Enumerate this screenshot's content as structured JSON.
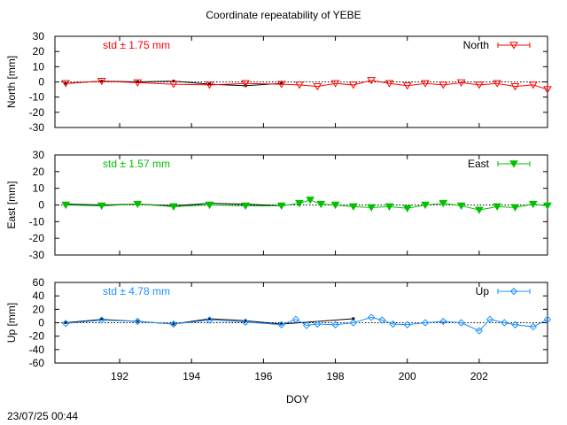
{
  "title": "Coordinate repeatability of YEBE",
  "timestamp": "23/07/25 00:44",
  "xlabel": "DOY",
  "chart_data": [
    {
      "type": "line",
      "name": "north",
      "ylabel": "North [mm]",
      "legend": "North",
      "legend_placement": "top-right",
      "std_label": "std ± 1.75 mm",
      "color": "#ff0000",
      "marker": "triangle-down-open",
      "xlim": [
        190.2,
        203.9
      ],
      "ylim": [
        -30,
        30
      ],
      "yticks": [
        30,
        20,
        10,
        0,
        -10,
        -20,
        -30
      ],
      "xticks": [
        192,
        194,
        196,
        198,
        200,
        202
      ],
      "grid": false,
      "daily_solution": {
        "x": [
          190.5,
          191.5,
          192.5,
          193.5,
          194.5,
          195.5,
          196.5
        ],
        "y": [
          -1.0,
          0.5,
          0.0,
          0.5,
          -1.5,
          -2.5,
          -1.0
        ]
      },
      "hourly_solution": {
        "x": [
          190.5,
          191.5,
          192.5,
          193.5,
          194.5,
          195.5,
          196.5,
          197.0,
          197.5,
          198.0,
          198.5,
          199.0,
          199.5,
          200.0,
          200.5,
          201.0,
          201.5,
          202.0,
          202.5,
          203.0,
          203.5,
          203.9
        ],
        "y": [
          -1.0,
          0.5,
          -0.5,
          -1.5,
          -2.0,
          -1.0,
          -1.5,
          -2.0,
          -3.0,
          -1.0,
          -2.0,
          1.0,
          -1.0,
          -2.5,
          -1.0,
          -2.0,
          -0.5,
          -2.0,
          -1.0,
          -3.0,
          -2.0,
          -5.0
        ]
      },
      "zero_line": 0
    },
    {
      "type": "line",
      "name": "east",
      "ylabel": "East [mm]",
      "legend": "East",
      "legend_placement": "top-right",
      "std_label": "std ± 1.57 mm",
      "color": "#00c000",
      "marker": "triangle-down-filled",
      "xlim": [
        190.2,
        203.9
      ],
      "ylim": [
        -30,
        30
      ],
      "yticks": [
        30,
        20,
        10,
        0,
        -10,
        -20,
        -30
      ],
      "xticks": [
        192,
        194,
        196,
        198,
        200,
        202
      ],
      "grid": false,
      "daily_solution": {
        "x": [
          190.5,
          191.5,
          192.5,
          193.5,
          194.5,
          195.5,
          196.5
        ],
        "y": [
          0.5,
          0.0,
          0.5,
          -0.5,
          1.0,
          0.5,
          -0.5
        ]
      },
      "hourly_solution": {
        "x": [
          190.5,
          191.5,
          192.5,
          193.5,
          194.5,
          195.5,
          196.5,
          197.0,
          197.3,
          197.6,
          198.0,
          198.5,
          199.0,
          199.5,
          200.0,
          200.5,
          201.0,
          201.5,
          202.0,
          202.5,
          203.0,
          203.5,
          203.9
        ],
        "y": [
          0.0,
          -0.5,
          0.5,
          -1.0,
          0.0,
          -0.5,
          -0.5,
          1.0,
          3.0,
          0.5,
          0.0,
          -1.0,
          -1.5,
          -1.0,
          -2.0,
          0.0,
          1.0,
          -0.5,
          -3.0,
          -1.0,
          -1.5,
          0.5,
          -0.5
        ]
      },
      "zero_line": 0
    },
    {
      "type": "line",
      "name": "up",
      "ylabel": "Up [mm]",
      "legend": "Up",
      "legend_placement": "top-right",
      "std_label": "std ± 4.78 mm",
      "color": "#1e90ff",
      "marker": "diamond-open",
      "xlim": [
        190.2,
        203.9
      ],
      "ylim": [
        -60,
        60
      ],
      "yticks": [
        60,
        40,
        20,
        0,
        -20,
        -40,
        -60
      ],
      "xticks": [
        192,
        194,
        196,
        198,
        200,
        202
      ],
      "grid": false,
      "daily_solution": {
        "x": [
          190.5,
          191.5,
          192.5,
          193.5,
          194.5,
          195.5,
          196.5,
          198.5
        ],
        "y": [
          0.0,
          5.0,
          2.0,
          -2.0,
          6.0,
          3.0,
          -2.0,
          6.0
        ]
      },
      "hourly_solution": {
        "x": [
          190.5,
          191.5,
          192.5,
          193.5,
          194.5,
          195.5,
          196.5,
          196.9,
          197.2,
          197.5,
          198.0,
          198.5,
          199.0,
          199.3,
          199.6,
          200.0,
          200.5,
          201.0,
          201.5,
          202.0,
          202.3,
          202.7,
          203.0,
          203.5,
          203.9
        ],
        "y": [
          -1.0,
          4.0,
          2.0,
          -2.0,
          4.0,
          1.0,
          -3.0,
          5.0,
          -4.0,
          -2.0,
          -3.0,
          0.0,
          8.0,
          4.0,
          -2.0,
          -3.0,
          0.0,
          2.0,
          0.0,
          -12.0,
          5.0,
          0.0,
          -3.0,
          -6.0,
          5.0
        ]
      },
      "zero_line": 0
    }
  ]
}
